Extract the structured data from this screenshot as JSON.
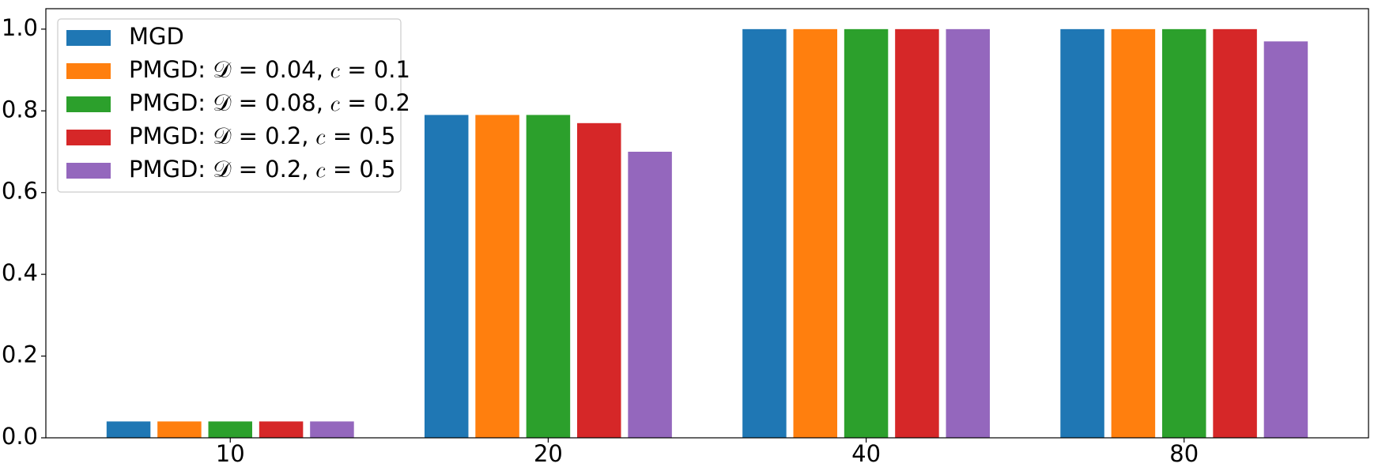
{
  "chart_data": {
    "type": "bar",
    "categories": [
      "10",
      "20",
      "40",
      "80"
    ],
    "series": [
      {
        "name": "MGD",
        "color": "#1f77b4",
        "values": [
          0.04,
          0.79,
          1.0,
          1.0
        ]
      },
      {
        "name": "PMGD: 𝒟 = 0.04, 𝑐 = 0.1",
        "color": "#ff7f0e",
        "values": [
          0.04,
          0.79,
          1.0,
          1.0
        ]
      },
      {
        "name": "PMGD: 𝒟 = 0.08, 𝑐 = 0.2",
        "color": "#2ca02c",
        "values": [
          0.04,
          0.79,
          1.0,
          1.0
        ]
      },
      {
        "name": "PMGD: 𝒟 = 0.2, 𝑐 = 0.5",
        "color": "#d62728",
        "values": [
          0.04,
          0.77,
          1.0,
          1.0
        ]
      },
      {
        "name": "PMGD: 𝒟 = 0.2, 𝑐 = 0.5",
        "color": "#9467bd",
        "values": [
          0.04,
          0.7,
          1.0,
          0.97
        ]
      }
    ],
    "ylim": [
      0,
      1.05
    ],
    "yticks": [
      {
        "value": 0,
        "label": "0.0"
      },
      {
        "value": 0.2,
        "label": "0.2"
      },
      {
        "value": 0.4,
        "label": "0.4"
      },
      {
        "value": 0.6,
        "label": "0.6"
      },
      {
        "value": 0.8,
        "label": "0.8"
      },
      {
        "value": 1.0,
        "label": "1.0"
      }
    ],
    "legend": "upper left"
  }
}
